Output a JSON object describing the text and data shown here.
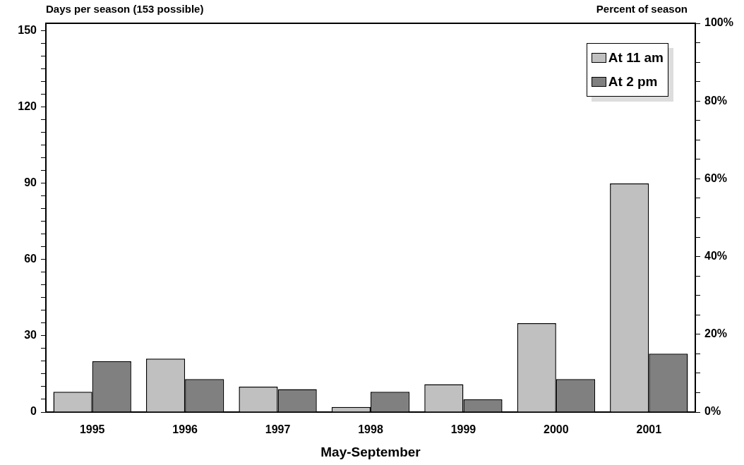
{
  "chart_data": {
    "type": "bar",
    "xlabel": "May-September",
    "ylabel": "Days per season (153 possible)",
    "y2label": "Percent of season",
    "categories": [
      "1995",
      "1996",
      "1997",
      "1998",
      "1999",
      "2000",
      "2001"
    ],
    "series": [
      {
        "name": "At 11 am",
        "color": "#c0c0c0",
        "values": [
          8,
          21,
          10,
          2,
          11,
          35,
          90
        ]
      },
      {
        "name": "At 2 pm",
        "color": "#808080",
        "values": [
          20,
          13,
          9,
          8,
          5,
          13,
          23
        ]
      }
    ],
    "ylim": [
      0,
      153
    ],
    "yticks": [
      0,
      {
        "value": 5,
        "label": null
      },
      {
        "value": 10,
        "label": null
      },
      {
        "value": 15,
        "label": null
      },
      {
        "value": 20,
        "label": null
      },
      {
        "value": 25,
        "label": null
      },
      30,
      {
        "value": 35,
        "label": null
      },
      {
        "value": 40,
        "label": null
      },
      {
        "value": 45,
        "label": null
      },
      {
        "value": 50,
        "label": null
      },
      {
        "value": 55,
        "label": null
      },
      60,
      {
        "value": 65,
        "label": null
      },
      {
        "value": 70,
        "label": null
      },
      {
        "value": 75,
        "label": null
      },
      {
        "value": 80,
        "label": null
      },
      {
        "value": 85,
        "label": null
      },
      90,
      {
        "value": 95,
        "label": null
      },
      {
        "value": 100,
        "label": null
      },
      {
        "value": 105,
        "label": null
      },
      {
        "value": 110,
        "label": null
      },
      {
        "value": 115,
        "label": null
      },
      120,
      {
        "value": 125,
        "label": null
      },
      {
        "value": 130,
        "label": null
      },
      {
        "value": 135,
        "label": null
      },
      {
        "value": 140,
        "label": null
      },
      {
        "value": 145,
        "label": null
      },
      150
    ],
    "y2lim": [
      0,
      100
    ],
    "y2ticks": [
      {
        "value": 0,
        "label": "0%"
      },
      {
        "value": 5,
        "label": null
      },
      {
        "value": 10,
        "label": null
      },
      {
        "value": 15,
        "label": null
      },
      {
        "value": 20,
        "label": "20%"
      },
      {
        "value": 25,
        "label": null
      },
      {
        "value": 30,
        "label": null
      },
      {
        "value": 35,
        "label": null
      },
      {
        "value": 40,
        "label": "40%"
      },
      {
        "value": 45,
        "label": null
      },
      {
        "value": 50,
        "label": null
      },
      {
        "value": 55,
        "label": null
      },
      {
        "value": 60,
        "label": "60%"
      },
      {
        "value": 65,
        "label": null
      },
      {
        "value": 70,
        "label": null
      },
      {
        "value": 75,
        "label": null
      },
      {
        "value": 80,
        "label": "80%"
      },
      {
        "value": 85,
        "label": null
      },
      {
        "value": 90,
        "label": null
      },
      {
        "value": 95,
        "label": null
      },
      {
        "value": 100,
        "label": "100%"
      }
    ],
    "legend": "top right",
    "grid": false
  }
}
